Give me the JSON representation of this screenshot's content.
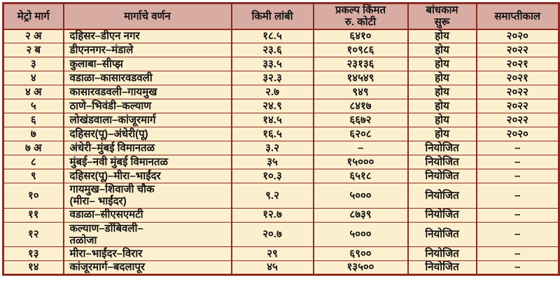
{
  "page": {
    "background": "#ffffff"
  },
  "table": {
    "kind": "static-data-table",
    "language": "Marathi",
    "colors": {
      "header_bg": "#d9aca3",
      "row_bg": "#fcefce",
      "border": "#8e2b20",
      "text": "#141414"
    },
    "columns": [
      "मेट्रो मार्ग",
      "मार्गाचे वर्णन",
      "किमी लांबी",
      "प्रकल्प किंमत\nरु. कोटी",
      "बांधकाम\nसुरू",
      "समाप्तीकाल"
    ],
    "rows": [
      [
        "२ अ",
        "दहिसर–डीएन नगर",
        "१८.५",
        "६४१०",
        "होय",
        "२०२०"
      ],
      [
        "२ ब",
        "डीएननगर–मंडाले",
        "२३.६",
        "१०९८६",
        "होय",
        "२०२२"
      ],
      [
        "३",
        "कुलाबा–सीप्झ",
        "३३.५",
        "२३१३६",
        "होय",
        "२०२१"
      ],
      [
        "४",
        "वडाळा–कासारवडवली",
        "३२.३",
        "१४५४९",
        "होय",
        "२०२१"
      ],
      [
        "४ अ",
        "कासारवडवली–गायमुख",
        "२.७",
        "९४९",
        "होय",
        "२०२२"
      ],
      [
        "५",
        "ठाणे–भिवंडी–कल्याण",
        "२४.९",
        "८४१७",
        "होय",
        "२०२२"
      ],
      [
        "६",
        "लोखंडवाला–कांजूरमार्ग",
        "१४.५",
        "६६७२",
        "होय",
        "२०२२"
      ],
      [
        "७",
        "दहिसर(पू)–अंधेरी(पू)",
        "१६.५",
        "६२०८",
        "होय",
        "२०२०"
      ],
      [
        "७ अ",
        "अंधेरी–मुंबई विमानतळ",
        "३.२",
        "–",
        "नियोजित",
        "–"
      ],
      [
        "८",
        "मुंबई–नवी मुंबई विमानतळ",
        "३५",
        "१५०००",
        "नियोजित",
        "–"
      ],
      [
        "९",
        "दहिसर(पू)–मीरा–भाईंदर",
        "१०.३",
        "६५१८",
        "नियोजित",
        "–"
      ],
      [
        "१०",
        "गायमुख–शिवाजी चौक\n(मीरा– भाईंदर)",
        "९.२",
        "५०००",
        "नियोजित",
        "–"
      ],
      [
        "११",
        "वडाळा–सीएसएमटी",
        "१२.७",
        "८७३९",
        "नियोजित",
        "–"
      ],
      [
        "१२",
        "कल्याण–डोंबिवली–\nतळोजा",
        "२०.७",
        "५०००",
        "नियोजित",
        "–"
      ],
      [
        "१३",
        "मीरा–भाईंदर–विरार",
        "२९",
        "६९००",
        "नियोजित",
        "–"
      ],
      [
        "१४",
        "कांजूरमार्ग–बदलापूर",
        "४५",
        "१३५००",
        "नियोजित",
        "–"
      ]
    ]
  }
}
